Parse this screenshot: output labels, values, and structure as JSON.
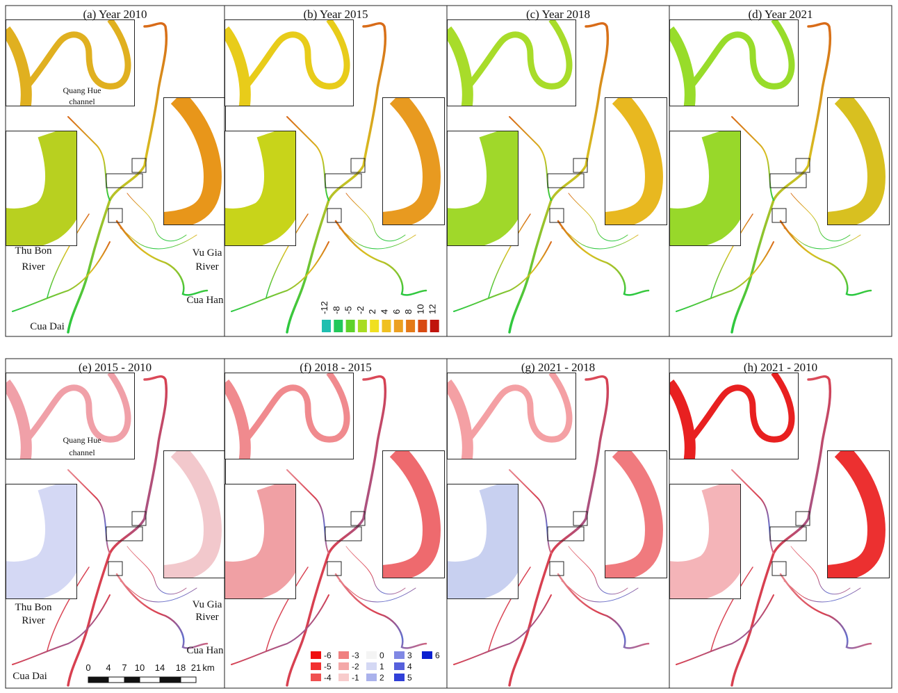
{
  "panels": [
    {
      "title": "(a) Year 2010"
    },
    {
      "title": "(b) Year 2015"
    },
    {
      "title": "(c) Year 2018"
    },
    {
      "title": "(d) Year 2021"
    },
    {
      "title": "(e) 2015 - 2010"
    },
    {
      "title": "(f) 2018 - 2015"
    },
    {
      "title": "(g) 2021 - 2018"
    },
    {
      "title": "(h) 2021 - 2010"
    }
  ],
  "place_labels": {
    "quang_hue": [
      "Quang Hue",
      "channel"
    ],
    "thu_bon": [
      "Thu Bon",
      "River"
    ],
    "vu_gia": [
      "Vu Gia",
      "River"
    ],
    "cua_han": "Cua Han",
    "cua_dai": "Cua Dai"
  },
  "depth_legend": [
    {
      "label": "-12",
      "color": "#1fbfb0"
    },
    {
      "label": "-8",
      "color": "#22c85a"
    },
    {
      "label": "-5",
      "color": "#5ed22a"
    },
    {
      "label": "-2",
      "color": "#a8dc22"
    },
    {
      "label": "2",
      "color": "#f0e020"
    },
    {
      "label": "4",
      "color": "#f0c020"
    },
    {
      "label": "6",
      "color": "#eca020"
    },
    {
      "label": "8",
      "color": "#e47a18"
    },
    {
      "label": "10",
      "color": "#d84a12"
    },
    {
      "label": "12",
      "color": "#c0140c"
    }
  ],
  "change_legend": [
    {
      "label": "-6",
      "color": "#f01010"
    },
    {
      "label": "-5",
      "color": "#f23030"
    },
    {
      "label": "-4",
      "color": "#f05050"
    },
    {
      "label": "-3",
      "color": "#f08080"
    },
    {
      "label": "-2",
      "color": "#f4a8a8"
    },
    {
      "label": "-1",
      "color": "#f8cccc"
    },
    {
      "label": "0",
      "color": "#f4f4f4"
    },
    {
      "label": "1",
      "color": "#d4d8f4"
    },
    {
      "label": "2",
      "color": "#aab2ec"
    },
    {
      "label": "3",
      "color": "#8088e4"
    },
    {
      "label": "4",
      "color": "#5660dc"
    },
    {
      "label": "5",
      "color": "#3040d8"
    },
    {
      "label": "6",
      "color": "#0a20d0"
    }
  ],
  "scale_bar": {
    "ticks": [
      "0",
      "4",
      "7",
      "10",
      "14",
      "18",
      "21"
    ],
    "unit": "km"
  }
}
